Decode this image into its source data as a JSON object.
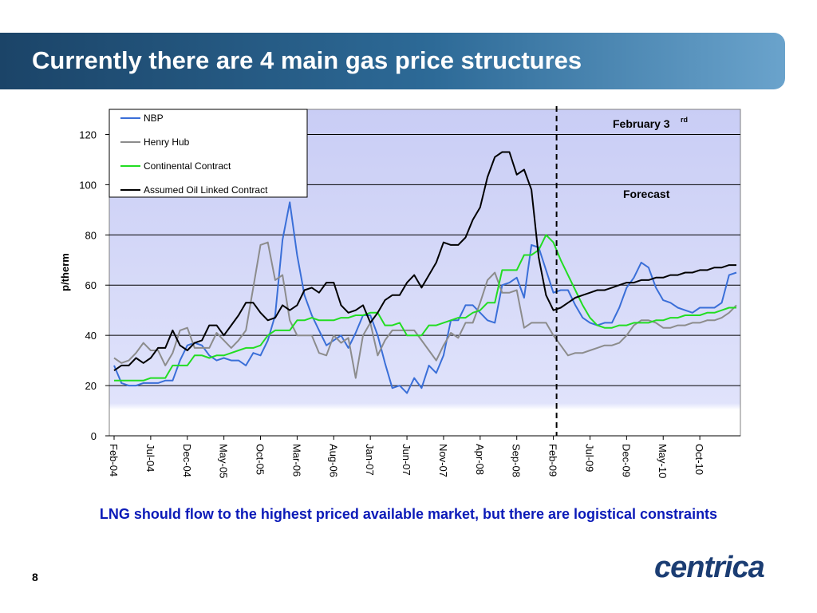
{
  "slide": {
    "title": "Currently there are 4 main gas price structures",
    "caption": "LNG should flow to the highest priced available market, but there are logistical constraints",
    "page_number": "8",
    "logo_text": "centrica"
  },
  "chart_data": {
    "type": "line",
    "ylabel": "p/therm",
    "ylim": [
      0,
      130
    ],
    "yticks": [
      0,
      20,
      40,
      60,
      80,
      100,
      120
    ],
    "grid": true,
    "legend_position": "top-left",
    "x_tick_labels": [
      "Feb-04",
      "Jul-04",
      "Dec-04",
      "May-05",
      "Oct-05",
      "Mar-06",
      "Aug-06",
      "Jan-07",
      "Jun-07",
      "Nov-07",
      "Apr-08",
      "Sep-08",
      "Feb-09",
      "Jul-09",
      "Dec-09",
      "May-10",
      "Oct-10"
    ],
    "x_start": "Feb-04",
    "x_end": "Dec-10",
    "forecast_divider": "Feb-09",
    "annotations": {
      "date_main": "February 3",
      "date_sup": "rd",
      "forecast": "Forecast"
    },
    "colors": {
      "nbp": "#3a6fd8",
      "henry_hub": "#8c8c8c",
      "continental": "#22dd22",
      "oil_linked": "#000000",
      "plot_bg_top": "#c9cdf5",
      "plot_bg_bottom": "#e0e3fb"
    },
    "series": [
      {
        "name": "NBP",
        "key": "nbp",
        "values": [
          28,
          21,
          20,
          20,
          21,
          21,
          21,
          22,
          22,
          30,
          36,
          37,
          36,
          32,
          30,
          31,
          30,
          30,
          28,
          33,
          32,
          38,
          48,
          78,
          93,
          72,
          56,
          48,
          42,
          36,
          38,
          40,
          35,
          41,
          48,
          48,
          40,
          29,
          19,
          20,
          17,
          23,
          19,
          28,
          25,
          32,
          46,
          46,
          52,
          52,
          49,
          46,
          45,
          60,
          61,
          63,
          55,
          76,
          75,
          66,
          57,
          58,
          58,
          52,
          47,
          45,
          44,
          45,
          45,
          51,
          59,
          63,
          69,
          67,
          59,
          54,
          53,
          51,
          50,
          49,
          51,
          51,
          51,
          53,
          64,
          65
        ]
      },
      {
        "name": "Henry Hub",
        "key": "henry_hub",
        "values": [
          31,
          29,
          30,
          33,
          37,
          34,
          34,
          28,
          33,
          42,
          43,
          35,
          35,
          35,
          41,
          38,
          35,
          38,
          42,
          59,
          76,
          77,
          62,
          64,
          46,
          40,
          40,
          40,
          33,
          32,
          40,
          37,
          39,
          23,
          40,
          45,
          32,
          38,
          42,
          42,
          42,
          42,
          38,
          34,
          30,
          36,
          41,
          39,
          45,
          45,
          53,
          62,
          65,
          57,
          57,
          58,
          43,
          45,
          45,
          45,
          40,
          36,
          32,
          33,
          33,
          34,
          35,
          36,
          36,
          37,
          40,
          44,
          46,
          46,
          45,
          43,
          43,
          44,
          44,
          45,
          45,
          46,
          46,
          47,
          49,
          52
        ]
      },
      {
        "name": "Continental Contract",
        "key": "continental",
        "values": [
          22,
          22,
          22,
          22,
          22,
          23,
          23,
          23,
          28,
          28,
          28,
          32,
          32,
          31,
          32,
          32,
          33,
          34,
          35,
          35,
          36,
          40,
          42,
          42,
          42,
          46,
          46,
          47,
          46,
          46,
          46,
          47,
          47,
          48,
          48,
          49,
          49,
          44,
          44,
          45,
          40,
          40,
          40,
          44,
          44,
          45,
          46,
          47,
          47,
          49,
          50,
          53,
          53,
          66,
          66,
          66,
          72,
          72,
          74,
          80,
          77,
          70,
          64,
          58,
          52,
          47,
          44,
          43,
          43,
          44,
          44,
          45,
          45,
          45,
          46,
          46,
          47,
          47,
          48,
          48,
          48,
          49,
          49,
          50,
          51,
          51
        ]
      },
      {
        "name": "Assumed Oil Linked Contract",
        "key": "oil_linked",
        "values": [
          26,
          28,
          28,
          31,
          29,
          31,
          35,
          35,
          42,
          36,
          34,
          37,
          38,
          44,
          44,
          40,
          44,
          48,
          53,
          53,
          49,
          46,
          47,
          52,
          50,
          52,
          58,
          59,
          57,
          61,
          61,
          52,
          49,
          50,
          52,
          45,
          49,
          54,
          56,
          56,
          61,
          64,
          59,
          64,
          69,
          77,
          76,
          76,
          79,
          86,
          91,
          103,
          111,
          113,
          113,
          104,
          106,
          98,
          71,
          56,
          50,
          51,
          53,
          55,
          56,
          57,
          58,
          58,
          59,
          60,
          61,
          61,
          62,
          62,
          63,
          63,
          64,
          64,
          65,
          65,
          66,
          66,
          67,
          67,
          68,
          68
        ]
      }
    ]
  }
}
